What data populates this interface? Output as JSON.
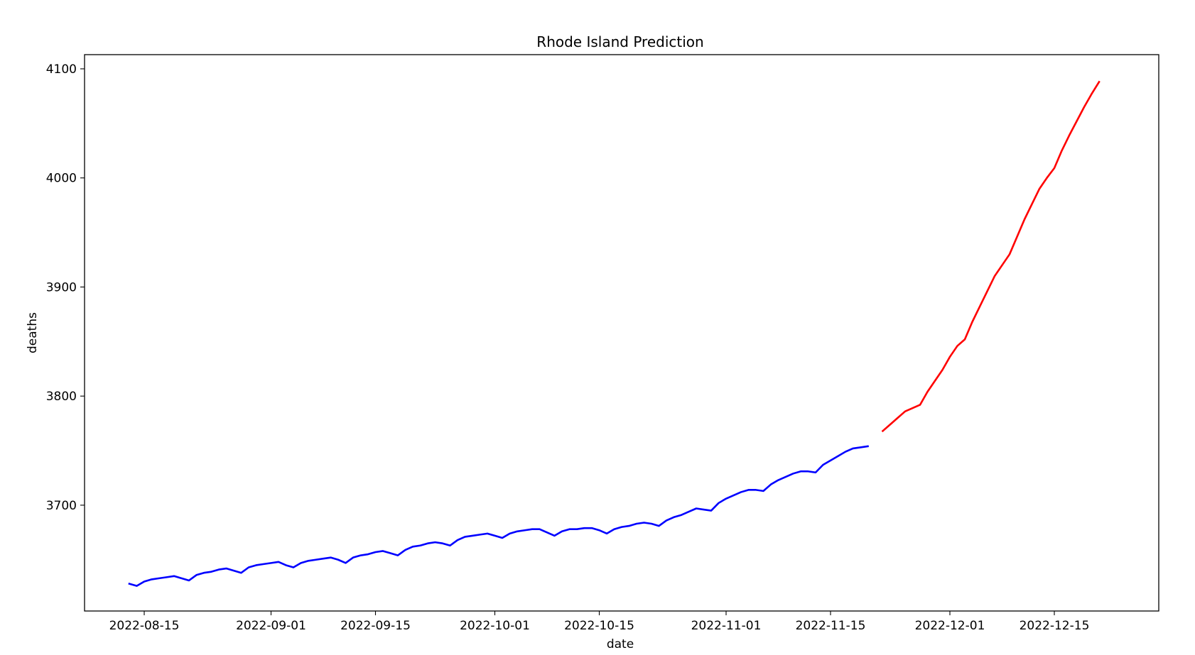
{
  "chart_data": {
    "type": "line",
    "title": "Rhode Island Prediction",
    "xlabel": "date",
    "ylabel": "deaths",
    "xlim": [
      "2022-08-07",
      "2022-12-29"
    ],
    "ylim": [
      3603,
      4113
    ],
    "x_ticks": [
      "2022-08-15",
      "2022-09-01",
      "2022-09-15",
      "2022-10-01",
      "2022-10-15",
      "2022-11-01",
      "2022-11-15",
      "2022-12-01",
      "2022-12-15"
    ],
    "y_ticks": [
      3700,
      3800,
      3900,
      4000,
      4100
    ],
    "grid": false,
    "series": [
      {
        "color": "#0000ff",
        "start_date": "2022-08-13",
        "values": [
          3628,
          3626,
          3630,
          3632,
          3633,
          3634,
          3635,
          3633,
          3631,
          3636,
          3638,
          3639,
          3641,
          3642,
          3640,
          3638,
          3643,
          3645,
          3646,
          3647,
          3648,
          3645,
          3643,
          3647,
          3649,
          3650,
          3651,
          3652,
          3650,
          3647,
          3652,
          3654,
          3655,
          3657,
          3658,
          3656,
          3654,
          3659,
          3662,
          3663,
          3665,
          3666,
          3665,
          3663,
          3668,
          3671,
          3672,
          3673,
          3674,
          3672,
          3670,
          3674,
          3676,
          3677,
          3678,
          3678,
          3675,
          3672,
          3676,
          3678,
          3678,
          3679,
          3679,
          3677,
          3674,
          3678,
          3680,
          3681,
          3683,
          3684,
          3683,
          3681,
          3686,
          3689,
          3691,
          3694,
          3697,
          3696,
          3695,
          3702,
          3706,
          3709,
          3712,
          3714,
          3714,
          3713,
          3719,
          3723,
          3726,
          3729,
          3731,
          3731,
          3730,
          3737,
          3741,
          3745,
          3749,
          3752,
          3753,
          3754
        ]
      },
      {
        "color": "#ff0000",
        "start_date": "2022-11-22",
        "values": [
          3768,
          3774,
          3780,
          3786,
          3789,
          3792,
          3804,
          3814,
          3824,
          3836,
          3846,
          3852,
          3868,
          3882,
          3896,
          3910,
          3920,
          3930,
          3946,
          3962,
          3976,
          3990,
          4000,
          4009,
          4025,
          4039,
          4052,
          4065,
          4077,
          4088
        ]
      }
    ]
  }
}
